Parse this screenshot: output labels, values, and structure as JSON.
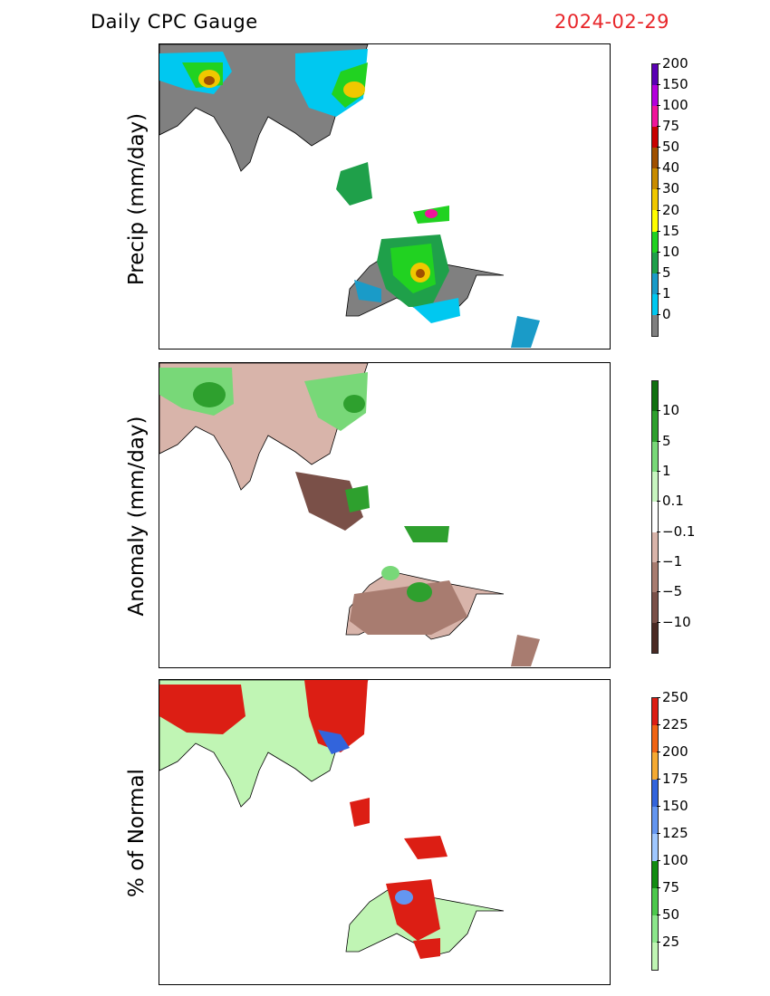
{
  "header": {
    "title": "Daily CPC Gauge",
    "date": "2024-02-29"
  },
  "panels": [
    {
      "id": "precip",
      "label": "Precip (mm/day)",
      "colorbar": {
        "colors": [
          "#808080",
          "#00c8f0",
          "#1a9bc8",
          "#1fa04a",
          "#21d221",
          "#ffff00",
          "#f0c800",
          "#c88c00",
          "#a05000",
          "#c80000",
          "#f0149b",
          "#b400dc",
          "#5a00b4"
        ],
        "ticks": [
          "0",
          "1",
          "5",
          "10",
          "15",
          "20",
          "30",
          "40",
          "50",
          "75",
          "100",
          "150",
          "200"
        ]
      }
    },
    {
      "id": "anomaly",
      "label": "Anomaly (mm/day)",
      "colorbar": {
        "colors": [
          "#4a2a24",
          "#7a5048",
          "#a87c70",
          "#d8b4aa",
          "#ffffff",
          "#c8f5c0",
          "#78d878",
          "#2ea02e",
          "#117011"
        ],
        "ticks": [
          "10",
          "5",
          "1",
          "0.1",
          "−0.1",
          "−1",
          "−5",
          "−10"
        ]
      }
    },
    {
      "id": "pctnormal",
      "label": "% of Normal",
      "colorbar": {
        "colors": [
          "#c0f5b4",
          "#8ce68c",
          "#4cc84c",
          "#128c12",
          "#a0c8ff",
          "#6496f0",
          "#3264dc",
          "#f5aa32",
          "#f06414",
          "#dc1e14"
        ],
        "ticks": [
          "25",
          "50",
          "75",
          "100",
          "125",
          "150",
          "175",
          "200",
          "225",
          "250"
        ]
      }
    }
  ]
}
